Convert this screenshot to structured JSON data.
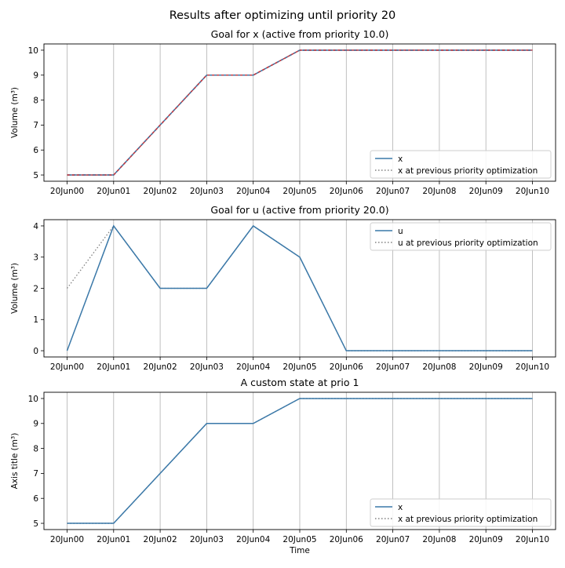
{
  "figure": {
    "suptitle": "Results after optimizing until priority 20"
  },
  "chart_data": [
    {
      "type": "line",
      "title": "Goal for x (active from priority 10.0)",
      "xlabel": "",
      "ylabel": "Volume (m³)",
      "categories": [
        "20Jun00",
        "20Jun01",
        "20Jun02",
        "20Jun03",
        "20Jun04",
        "20Jun05",
        "20Jun06",
        "20Jun07",
        "20Jun08",
        "20Jun09",
        "20Jun10"
      ],
      "ylim": [
        4.75,
        10.25
      ],
      "yticks": [
        5,
        6,
        7,
        8,
        9,
        10
      ],
      "grid": "vertical",
      "legend_position": "lower-right",
      "series": [
        {
          "name": "x",
          "style": "solid",
          "color": "#3a78a8",
          "values": [
            5,
            5,
            7,
            9,
            9,
            10,
            10,
            10,
            10,
            10,
            10
          ]
        },
        {
          "name": "x at previous priority optimization",
          "style": "dotted",
          "color": "#808080",
          "values": [
            5,
            5,
            7,
            9,
            9,
            10,
            10,
            10,
            10,
            10,
            10
          ]
        }
      ],
      "bands": [
        {
          "color": "#e03030",
          "style": "dashed",
          "lower": [
            5,
            5,
            7,
            9,
            9,
            10,
            10,
            10,
            10,
            10,
            10
          ],
          "upper": [
            5,
            5,
            7,
            9,
            9,
            10,
            10,
            10,
            10,
            10,
            10
          ]
        }
      ]
    },
    {
      "type": "line",
      "title": "Goal for u (active from priority 20.0)",
      "xlabel": "",
      "ylabel": "Volume (m³)",
      "categories": [
        "20Jun00",
        "20Jun01",
        "20Jun02",
        "20Jun03",
        "20Jun04",
        "20Jun05",
        "20Jun06",
        "20Jun07",
        "20Jun08",
        "20Jun09",
        "20Jun10"
      ],
      "ylim": [
        -0.2,
        4.2
      ],
      "yticks": [
        0,
        1,
        2,
        3,
        4
      ],
      "grid": "vertical",
      "legend_position": "upper-right",
      "series": [
        {
          "name": "u",
          "style": "solid",
          "color": "#3a78a8",
          "values": [
            0,
            4,
            2,
            2,
            4,
            3,
            0,
            0,
            0,
            0,
            0
          ]
        },
        {
          "name": "u at previous priority optimization",
          "style": "dotted",
          "color": "#808080",
          "values": [
            2,
            4,
            2,
            2,
            4,
            3,
            0,
            0,
            0,
            0,
            0
          ]
        }
      ],
      "bands": []
    },
    {
      "type": "line",
      "title": "A custom state at prio 1",
      "xlabel": "Time",
      "ylabel": "Axis title (m³)",
      "categories": [
        "20Jun00",
        "20Jun01",
        "20Jun02",
        "20Jun03",
        "20Jun04",
        "20Jun05",
        "20Jun06",
        "20Jun07",
        "20Jun08",
        "20Jun09",
        "20Jun10"
      ],
      "ylim": [
        4.75,
        10.25
      ],
      "yticks": [
        5,
        6,
        7,
        8,
        9,
        10
      ],
      "grid": "vertical",
      "legend_position": "lower-right",
      "series": [
        {
          "name": "x",
          "style": "solid",
          "color": "#3a78a8",
          "values": [
            5,
            5,
            7,
            9,
            9,
            10,
            10,
            10,
            10,
            10,
            10
          ]
        },
        {
          "name": "x at previous priority optimization",
          "style": "dotted",
          "color": "#808080",
          "values": [
            5,
            5,
            7,
            9,
            9,
            10,
            10,
            10,
            10,
            10,
            10
          ]
        }
      ],
      "bands": []
    }
  ]
}
